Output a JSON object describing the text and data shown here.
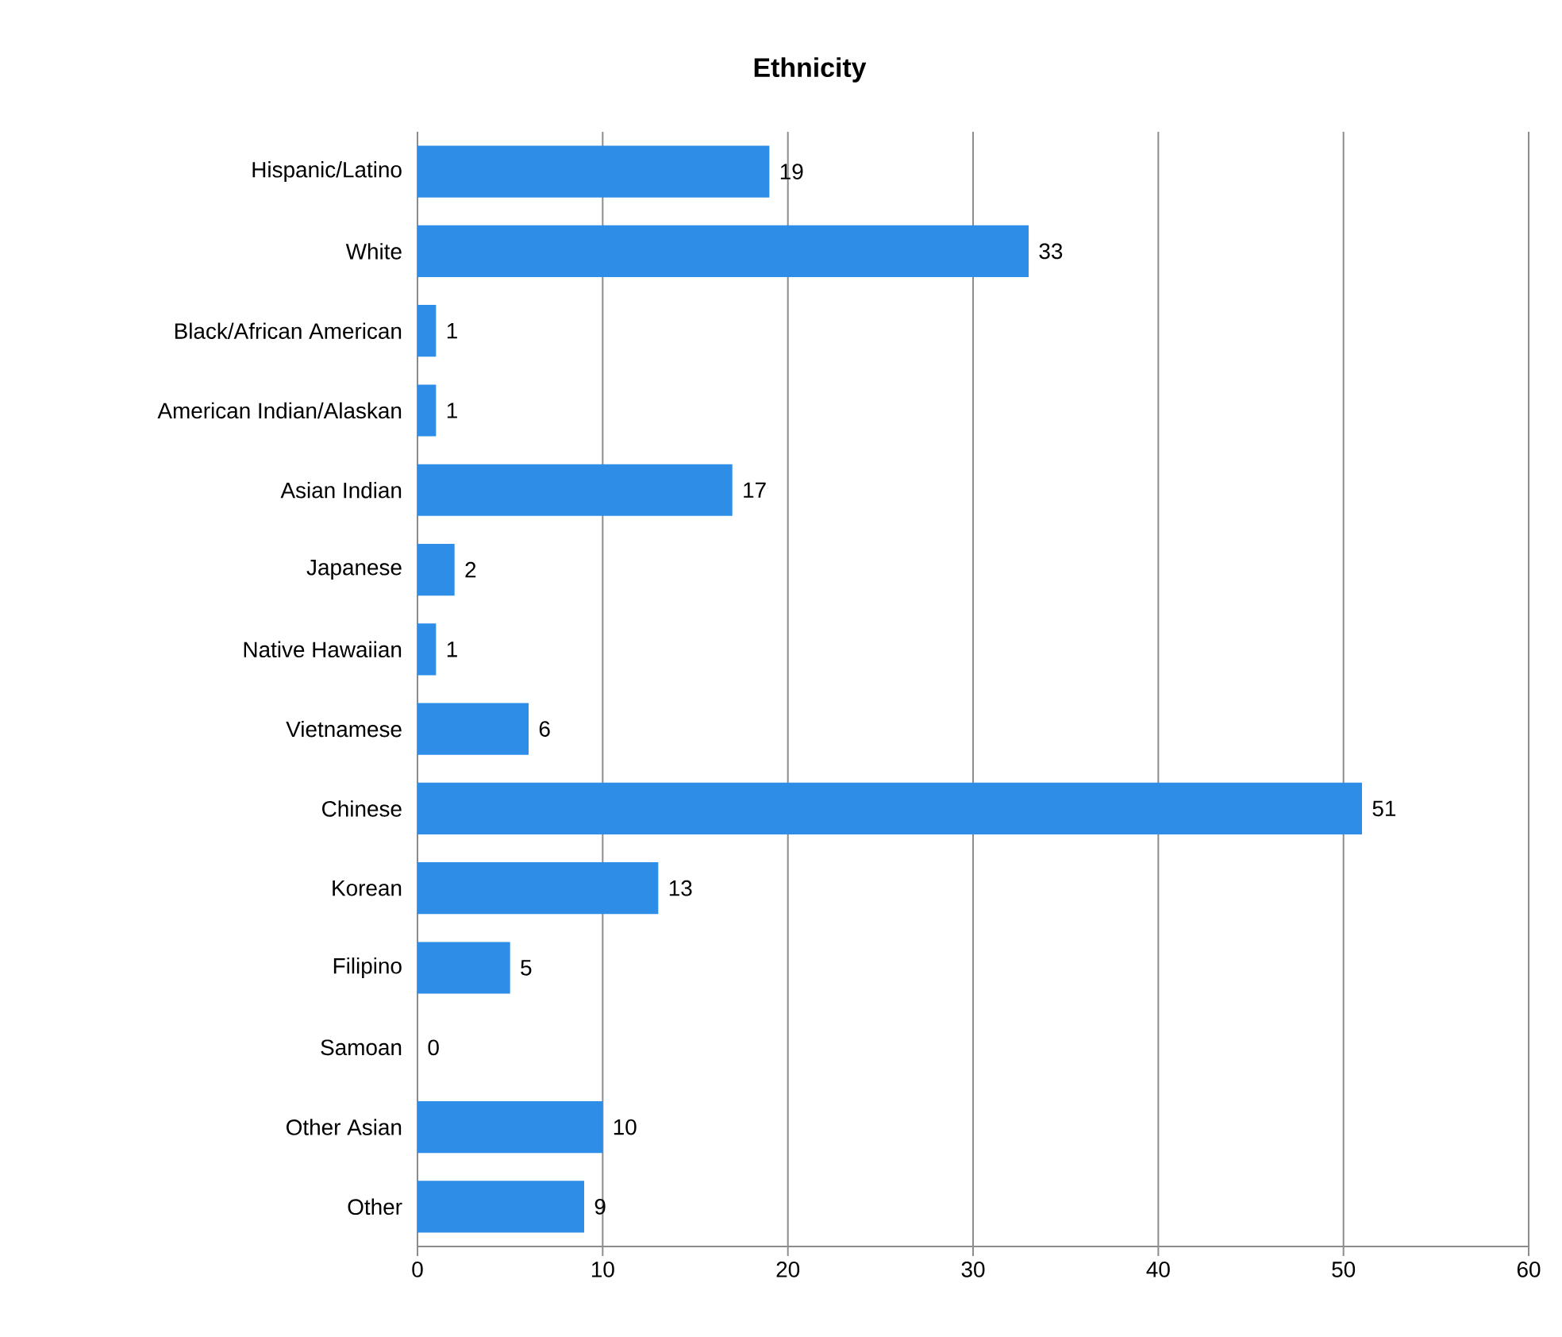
{
  "chart_data": {
    "type": "bar",
    "orientation": "horizontal",
    "title": "Ethnicity",
    "categories": [
      "Hispanic/Latino",
      "White",
      "Black/African American",
      "American Indian/Alaskan",
      "Asian Indian",
      "Japanese",
      "Native Hawaiian",
      "Vietnamese",
      "Chinese",
      "Korean",
      "Filipino",
      "Samoan",
      "Other Asian",
      "Other"
    ],
    "values": [
      19,
      33,
      1,
      1,
      17,
      2,
      1,
      6,
      51,
      13,
      5,
      0,
      10,
      9
    ],
    "color": "#2e8de6",
    "xlim": [
      0,
      60
    ],
    "xticks": [
      0,
      10,
      20,
      30,
      40,
      50,
      60
    ],
    "grid": "x",
    "data_labels": true
  }
}
